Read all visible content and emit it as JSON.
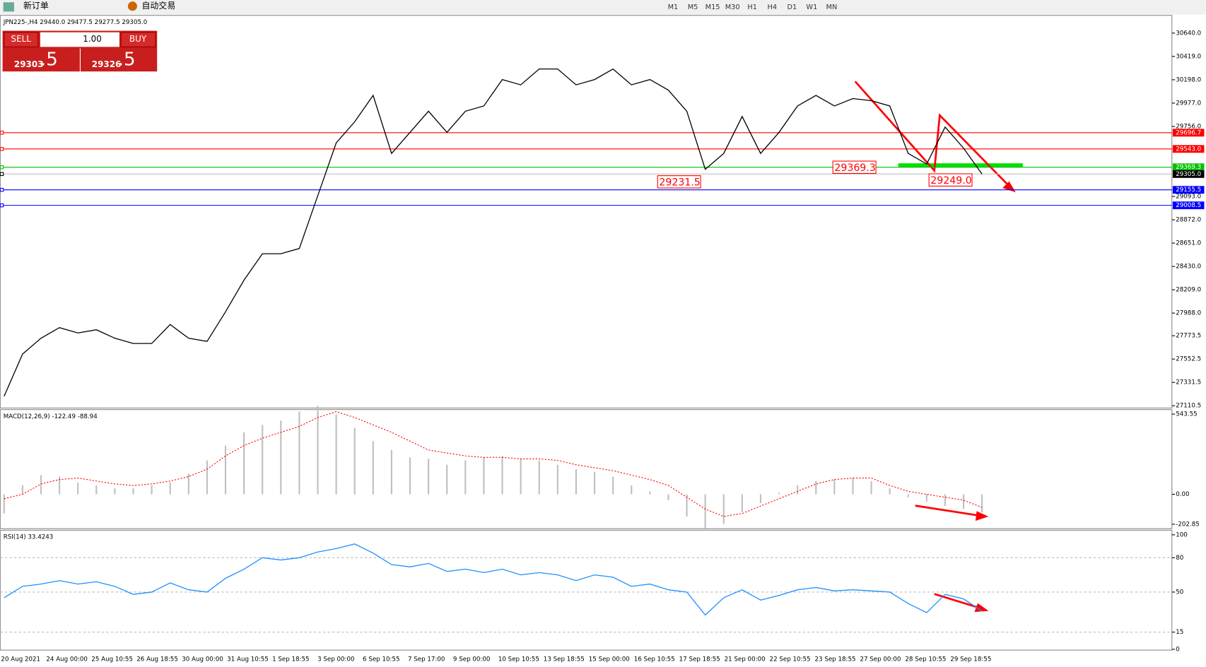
{
  "toolbar": {
    "new_order": "新订单",
    "auto_trading": "自动交易",
    "timeframes": [
      "M1",
      "M5",
      "M15",
      "M30",
      "H1",
      "H4",
      "D1",
      "W1",
      "MN"
    ]
  },
  "trade_panel": {
    "sell": "SELL",
    "buy": "BUY",
    "volume": "1.00",
    "bid_big": "29303",
    "bid_small": ".5",
    "ask_big": "29326",
    "ask_small": ".5"
  },
  "chart_data": [
    {
      "type": "line",
      "title": "JPN225-,H4 29440.0 29477.5 29277.5 29305.0",
      "x_labels": [
        "20 Aug 2021",
        "24 Aug 00:00",
        "25 Aug 10:55",
        "26 Aug 18:55",
        "30 Aug 00:00",
        "31 Aug 10:55",
        "1 Sep 18:55",
        "3 Sep 00:00",
        "6 Sep 10:55",
        "7 Sep 17:00",
        "9 Sep 00:00",
        "10 Sep 10:55",
        "13 Sep 18:55",
        "15 Sep 00:00",
        "16 Sep 10:55",
        "17 Sep 18:55",
        "21 Sep 00:00",
        "22 Sep 10:55",
        "23 Sep 18:55",
        "27 Sep 00:00",
        "28 Sep 10:55",
        "29 Sep 18:55"
      ],
      "series": [
        {
          "color": "#000000",
          "values": [
            27200,
            27600,
            27750,
            27850,
            27800,
            27830,
            27750,
            27700,
            27700,
            27880,
            27750,
            27720,
            28000,
            28300,
            28550,
            28550,
            28600,
            29100,
            29600,
            29800,
            30050,
            29500,
            29700,
            29900,
            29700,
            29900,
            29950,
            30200,
            30150,
            30300,
            30300,
            30150,
            30200,
            30300,
            30150,
            30200,
            30100,
            29900,
            29350,
            29500,
            29850,
            29500,
            29700,
            29950,
            30050,
            29950,
            30020,
            30000,
            29950,
            29500,
            29400,
            29750,
            29550,
            29305
          ]
        }
      ],
      "ylim": [
        27096,
        30808
      ],
      "yticks": [
        {
          "value": 30640,
          "label": "30640.0"
        },
        {
          "value": 30419,
          "label": "30419.0"
        },
        {
          "value": 30198,
          "label": "30198.0"
        },
        {
          "value": 29977,
          "label": "29977.0"
        },
        {
          "value": 29756,
          "label": "29756.0"
        },
        {
          "value": 29093,
          "label": "29093.0"
        },
        {
          "value": 28872,
          "label": "28872.0"
        },
        {
          "value": 28651,
          "label": "28651.0"
        },
        {
          "value": 28430,
          "label": "28430.0"
        },
        {
          "value": 28209,
          "label": "28209.0"
        },
        {
          "value": 27988,
          "label": "27988.0"
        },
        {
          "value": 27773.5,
          "label": "27773.5"
        },
        {
          "value": 27552.5,
          "label": "27552.5"
        },
        {
          "value": 27331.5,
          "label": "27331.5"
        },
        {
          "value": 27110.5,
          "label": "27110.5"
        }
      ],
      "levels": [
        {
          "value": 29696.7,
          "label": "29696.7",
          "color": "#ff0000"
        },
        {
          "value": 29543,
          "label": "29543.0",
          "color": "#ff0000"
        },
        {
          "value": 29369.3,
          "label": "29369.3",
          "color": "#00c000"
        },
        {
          "value": 29305,
          "label": "29305.0",
          "color": "#000000"
        },
        {
          "value": 29155.5,
          "label": "29155.5",
          "color": "#0000ff"
        },
        {
          "value": 29008.5,
          "label": "29008.5",
          "color": "#0000ff"
        }
      ],
      "annotations": [
        {
          "value": 29369.3,
          "label": "29369.3"
        },
        {
          "value": 29231.5,
          "label": "29231.5"
        },
        {
          "value": 29249,
          "label": "29249.0"
        }
      ]
    },
    {
      "type": "macd",
      "title": "MACD(12,26,9) -122.49 -88.94",
      "series": [
        {
          "color": "#c0c0c0",
          "values": [
            -130,
            60,
            130,
            120,
            80,
            60,
            40,
            40,
            60,
            80,
            140,
            230,
            330,
            420,
            470,
            500,
            560,
            600,
            540,
            450,
            360,
            300,
            250,
            240,
            200,
            230,
            250,
            260,
            240,
            230,
            200,
            170,
            150,
            120,
            60,
            20,
            -40,
            -150,
            -230,
            -200,
            -120,
            -60,
            10,
            60,
            90,
            100,
            110,
            90,
            40,
            -20,
            -50,
            -80,
            -100,
            -122.49
          ]
        },
        {
          "color": "#ff0000",
          "values": [
            -30,
            0,
            70,
            100,
            110,
            90,
            70,
            60,
            70,
            90,
            120,
            170,
            260,
            330,
            380,
            420,
            460,
            520,
            560,
            520,
            470,
            420,
            360,
            300,
            280,
            260,
            250,
            250,
            240,
            240,
            230,
            200,
            180,
            160,
            130,
            100,
            60,
            -20,
            -100,
            -150,
            -130,
            -80,
            -30,
            20,
            70,
            100,
            110,
            110,
            60,
            20,
            0,
            -20,
            -40,
            -88.94
          ]
        }
      ],
      "ylim": [
        -233,
        574
      ],
      "yticks": [
        {
          "value": 543.55,
          "label": "543.55"
        },
        {
          "value": 0,
          "label": "0.00"
        },
        {
          "value": -202.85,
          "label": "-202.85"
        }
      ]
    },
    {
      "type": "line",
      "title": "RSI(14) 33.4243",
      "series": [
        {
          "color": "#1e90ff",
          "values": [
            45,
            55,
            57,
            60,
            57,
            59,
            55,
            48,
            50,
            58,
            52,
            50,
            62,
            70,
            80,
            78,
            80,
            85,
            88,
            92,
            84,
            74,
            72,
            75,
            68,
            70,
            67,
            70,
            65,
            67,
            65,
            60,
            65,
            63,
            55,
            57,
            52,
            50,
            30,
            45,
            52,
            43,
            47,
            52,
            54,
            51,
            52,
            51,
            50,
            40,
            32,
            48,
            44,
            33.4243
          ]
        }
      ],
      "ylim": [
        0,
        104
      ],
      "yticks": [
        100,
        80,
        50,
        15,
        0
      ]
    }
  ]
}
